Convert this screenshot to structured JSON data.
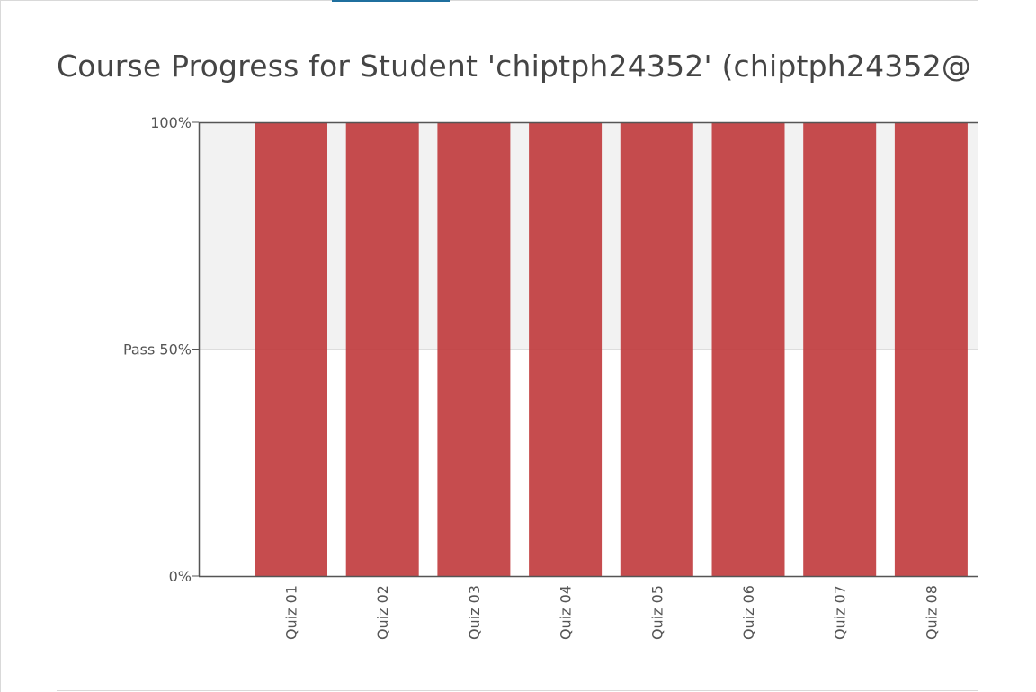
{
  "page": {
    "title": "Course Progress for Student 'chiptph24352' (chiptph24352@"
  },
  "chart_data": {
    "type": "bar",
    "categories": [
      "Quiz 01",
      "Quiz 02",
      "Quiz 03",
      "Quiz 04",
      "Quiz 05",
      "Quiz 06",
      "Quiz 07",
      "Quiz 08"
    ],
    "values": [
      100,
      100,
      100,
      100,
      100,
      100,
      100,
      100
    ],
    "ylim": [
      0,
      100
    ],
    "yticks": [
      {
        "value": 0,
        "label": "0%"
      },
      {
        "value": 50,
        "label": "Pass 50%"
      },
      {
        "value": 100,
        "label": "100%"
      }
    ],
    "pass_threshold": 50,
    "bar_color": "#c0393b",
    "pass_band_color": "#f2f2f2",
    "axis_color": "#555555",
    "grid": false,
    "legend": "none"
  }
}
